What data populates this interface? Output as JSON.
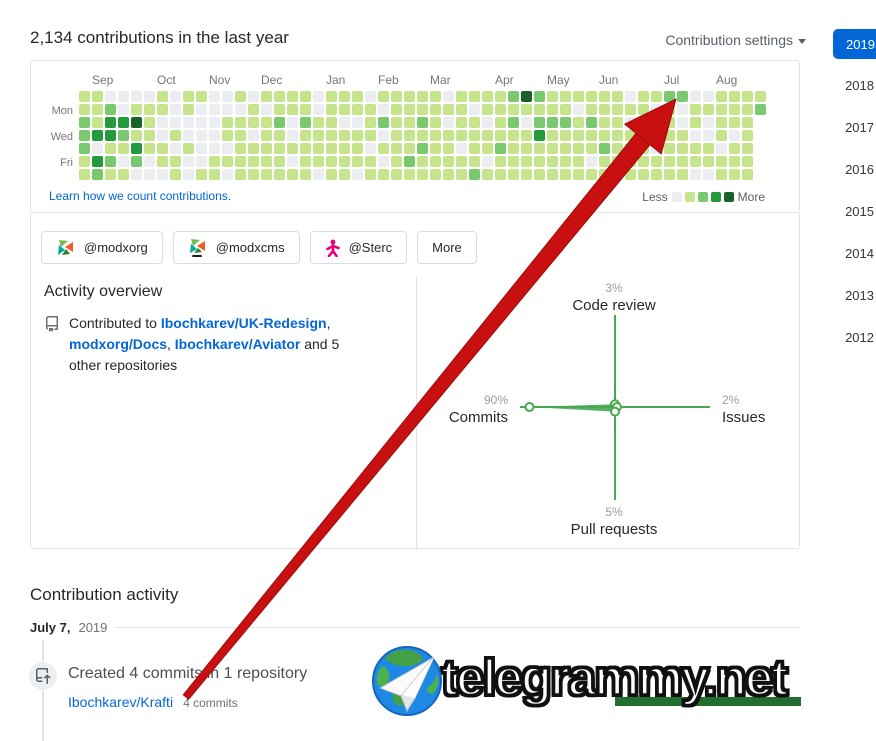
{
  "header": {
    "title": "2,134 contributions in the last year",
    "settings_label": "Contribution settings"
  },
  "years": {
    "selected": "2019",
    "others": [
      "2018",
      "2017",
      "2016",
      "2015",
      "2014",
      "2013",
      "2012"
    ]
  },
  "calendar_footer": {
    "link": "Learn how we count contributions.",
    "less": "Less",
    "more": "More"
  },
  "orgs": {
    "buttons": [
      "@modxorg",
      "@modxcms",
      "@Sterc"
    ],
    "more_label": "More"
  },
  "overview": {
    "heading": "Activity overview",
    "prefix": "Contributed to ",
    "repos": [
      "Ibochkarev/UK-Redesign",
      "modxorg/Docs",
      "Ibochkarev/Aviator"
    ],
    "sep": ", ",
    "sep_end": " ",
    "suffix": "and 5 other repositories"
  },
  "activity": {
    "heading": "Contribution activity",
    "date_bold": "July 7,",
    "date_year": "2019",
    "entry_title": "Created 4 commits in 1 repository",
    "repo_link": "Ibochkarev/Krafti",
    "commit_count": "4 commits"
  },
  "watermark": {
    "text": "telegrammy.net",
    "bar_color": "#226e31"
  },
  "annotation": {
    "arrow_color": "#c81010",
    "arrow_edge": "#9d0c0c"
  },
  "chart_data": [
    {
      "type": "heatmap",
      "title": "2,134 contributions in the last year",
      "months": [
        "Sep",
        "Oct",
        "Nov",
        "Dec",
        "Jan",
        "Feb",
        "Mar",
        "Apr",
        "May",
        "Jun",
        "Jul",
        "Aug"
      ],
      "month_week_index": [
        1,
        6,
        10,
        14,
        19,
        23,
        27,
        32,
        36,
        40,
        45,
        49
      ],
      "day_rows": {
        "1": "Mon",
        "3": "Wed",
        "5": "Fri"
      },
      "legend_colors": [
        "#ebedf0",
        "#c6e48b",
        "#7bc96f",
        "#239a3b",
        "#196127"
      ],
      "weeks": [
        "1122211",
        "1113032",
        "0233121",
        "0032101",
        "0141320",
        "0111100",
        "1100110",
        "0001011",
        "1100100",
        "1000001",
        "0000011",
        "0011010",
        "1011111",
        "0110111",
        "1011111",
        "1121111",
        "1100101",
        "1121111",
        "0011110",
        "1111111",
        "1101111",
        "1101110",
        "0111011",
        "1020101",
        "1111111",
        "1111121",
        "1121211",
        "1111111",
        "0101111",
        "1111011",
        "1011112",
        "1101101",
        "1111211",
        "2121111",
        "4101111",
        "2123111",
        "1121111",
        "1121111",
        "1011111",
        "1121101",
        "1111211",
        "1111110",
        "0101111",
        "1110111",
        "1011011",
        "2111111",
        "2001111",
        "0110110",
        "0100110",
        "1111011",
        "1110111",
        "1111111",
        "12"
      ]
    },
    {
      "type": "radar",
      "color": "#46a94f",
      "series": [
        {
          "label": "Code review",
          "pct": 3,
          "pct_label": "3%",
          "position": "top"
        },
        {
          "label": "Issues",
          "pct": 2,
          "pct_label": "2%",
          "position": "right"
        },
        {
          "label": "Pull requests",
          "pct": 5,
          "pct_label": "5%",
          "position": "bottom"
        },
        {
          "label": "Commits",
          "pct": 90,
          "pct_label": "90%",
          "position": "left"
        }
      ]
    }
  ]
}
